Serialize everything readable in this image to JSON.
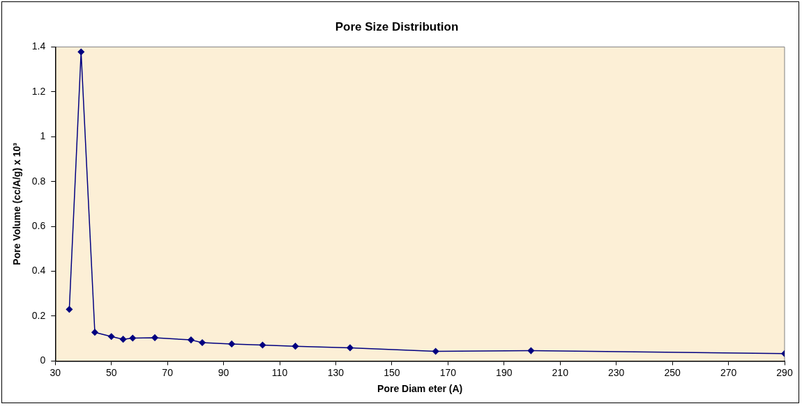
{
  "chart_data": {
    "type": "line",
    "title": "Pore Size Distribution",
    "xlabel": "Pore Diam eter (A)",
    "ylabel": "Pore Volume (cc/A/g) x 10³",
    "x": [
      35.0,
      39.2,
      44.1,
      50.0,
      54.2,
      57.6,
      65.5,
      78.4,
      82.4,
      92.9,
      103.9,
      115.6,
      135.1,
      165.6,
      199.6,
      290
    ],
    "series": [
      {
        "color": "#000080",
        "values": [
          0.23,
          1.378,
          0.128,
          0.109,
          0.097,
          0.102,
          0.104,
          0.094,
          0.082,
          0.076,
          0.071,
          0.066,
          0.059,
          0.043,
          0.046,
          0.033
        ]
      }
    ],
    "xlim": [
      30,
      290
    ],
    "xticks": [
      30,
      50,
      70,
      90,
      110,
      130,
      150,
      170,
      190,
      210,
      230,
      250,
      270,
      290
    ],
    "ylim": [
      0,
      1.4
    ],
    "yticks": [
      0,
      0.2,
      0.4,
      0.6,
      0.8,
      1,
      1.2,
      1.4
    ],
    "grid": false,
    "legend": false,
    "marker": "diamond",
    "line_style": "solid"
  }
}
